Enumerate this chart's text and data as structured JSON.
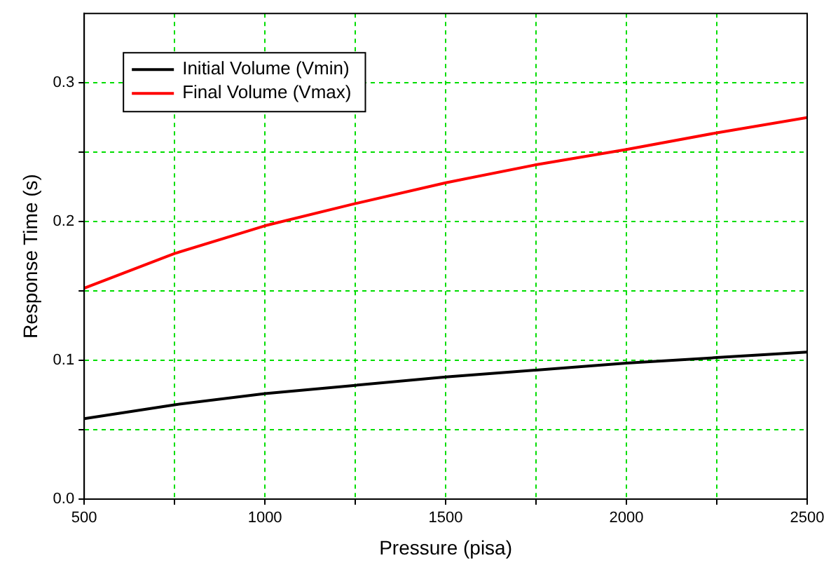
{
  "chart_data": {
    "type": "line",
    "xlabel": "Pressure (pisa)",
    "ylabel": "Response Time (s)",
    "x": [
      500,
      750,
      1000,
      1250,
      1500,
      1750,
      2000,
      2250,
      2500
    ],
    "series": [
      {
        "name": "Initial Volume (Vmin)",
        "color": "#000000",
        "values": [
          0.058,
          0.068,
          0.076,
          0.082,
          0.088,
          0.093,
          0.098,
          0.102,
          0.106
        ]
      },
      {
        "name": "Final Volume (Vmax)",
        "color": "#ff0000",
        "values": [
          0.152,
          0.177,
          0.197,
          0.213,
          0.228,
          0.241,
          0.252,
          0.264,
          0.275
        ]
      }
    ],
    "xlim": [
      500,
      2500
    ],
    "xticks": [
      500,
      {
        "value": 750,
        "label": null
      },
      1000,
      {
        "value": 1250,
        "label": null
      },
      1500,
      {
        "value": 1750,
        "label": null
      },
      2000,
      {
        "value": 2250,
        "label": null
      },
      2500
    ],
    "ylim": [
      0,
      0.35
    ],
    "yticks": [
      {
        "value": 0,
        "label": "0.0"
      },
      {
        "value": 0.05,
        "label": null
      },
      0.1,
      {
        "value": 0.15,
        "label": null
      },
      0.2,
      {
        "value": 0.25,
        "label": null
      },
      0.3
    ],
    "grid": true,
    "legend": "top left",
    "marker": "none",
    "line_style": "solid"
  }
}
